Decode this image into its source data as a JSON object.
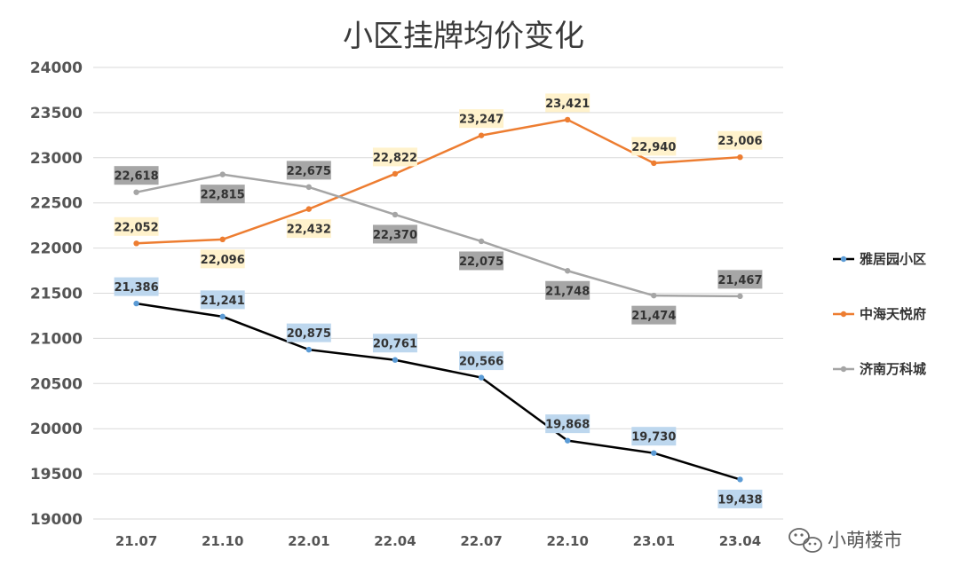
{
  "chart_data": {
    "type": "line",
    "title": "小区挂牌均价变化",
    "categories": [
      "21.07",
      "21.10",
      "22.01",
      "22.04",
      "22.07",
      "22.10",
      "23.01",
      "23.04"
    ],
    "ylim": [
      19000,
      24000
    ],
    "yticks": [
      19000,
      19500,
      20000,
      20500,
      21000,
      21500,
      22000,
      22500,
      23000,
      23500,
      24000
    ],
    "grid": true,
    "legend_position": "right",
    "series": [
      {
        "name": "雅居园小区",
        "color": "#000000",
        "marker_color": "#5b9bd5",
        "label_bg": "#bdd7ee",
        "label_color": "#333333",
        "values": [
          21386,
          21241,
          20875,
          20761,
          20566,
          19868,
          19730,
          19438
        ],
        "labels": [
          "21,386",
          "21,241",
          "20,875",
          "20,761",
          "20,566",
          "19,868",
          "19,730",
          "19,438"
        ],
        "label_pos": [
          "above",
          "above",
          "above",
          "above",
          "above",
          "above",
          "above",
          "below"
        ]
      },
      {
        "name": "中海天悦府",
        "color": "#ed7d31",
        "marker_color": "#ed7d31",
        "label_bg": "#fff2cc",
        "label_color": "#333333",
        "values": [
          22052,
          22096,
          22432,
          22822,
          23247,
          23421,
          22940,
          23006
        ],
        "labels": [
          "22,052",
          "22,096",
          "22,432",
          "22,822",
          "23,247",
          "23,421",
          "22,940",
          "23,006"
        ],
        "label_pos": [
          "above",
          "below",
          "below",
          "above",
          "above",
          "above",
          "above",
          "above"
        ]
      },
      {
        "name": "济南万科城",
        "color": "#a5a5a5",
        "marker_color": "#a5a5a5",
        "label_bg": "#a6a6a6",
        "label_color": "#333333",
        "values": [
          22618,
          22815,
          22675,
          22370,
          22075,
          21748,
          21474,
          21467
        ],
        "labels": [
          "22,618",
          "22,815",
          "22,675",
          "22,370",
          "22,075",
          "21,748",
          "21,474",
          "21,467"
        ],
        "label_pos": [
          "above",
          "below",
          "above",
          "below",
          "below",
          "below",
          "below",
          "above"
        ]
      }
    ]
  },
  "watermark": {
    "text": "小萌楼市",
    "icon": "wechat-icon"
  }
}
